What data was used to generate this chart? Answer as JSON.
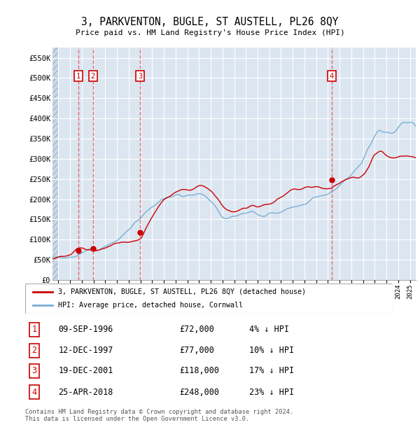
{
  "title": "3, PARKVENTON, BUGLE, ST AUSTELL, PL26 8QY",
  "subtitle": "Price paid vs. HM Land Registry's House Price Index (HPI)",
  "ylim": [
    0,
    575000
  ],
  "yticks": [
    0,
    50000,
    100000,
    150000,
    200000,
    250000,
    300000,
    350000,
    400000,
    450000,
    500000,
    550000
  ],
  "ytick_labels": [
    "£0",
    "£50K",
    "£100K",
    "£150K",
    "£200K",
    "£250K",
    "£300K",
    "£350K",
    "£400K",
    "£450K",
    "£500K",
    "£550K"
  ],
  "hpi_color": "#7bafd4",
  "price_color": "#cc0000",
  "bg_color": "#dce6f1",
  "transaction_dates": [
    1996.69,
    1997.95,
    2001.97,
    2018.32
  ],
  "transaction_prices": [
    72000,
    77000,
    118000,
    248000
  ],
  "transaction_labels": [
    "1",
    "2",
    "3",
    "4"
  ],
  "legend_label_price": "3, PARKVENTON, BUGLE, ST AUSTELL, PL26 8QY (detached house)",
  "legend_label_hpi": "HPI: Average price, detached house, Cornwall",
  "table_data": [
    [
      "1",
      "09-SEP-1996",
      "£72,000",
      "4% ↓ HPI"
    ],
    [
      "2",
      "12-DEC-1997",
      "£77,000",
      "10% ↓ HPI"
    ],
    [
      "3",
      "19-DEC-2001",
      "£118,000",
      "17% ↓ HPI"
    ],
    [
      "4",
      "25-APR-2018",
      "£248,000",
      "23% ↓ HPI"
    ]
  ],
  "footer": "Contains HM Land Registry data © Crown copyright and database right 2024.\nThis data is licensed under the Open Government Licence v3.0.",
  "xmin": 1994.5,
  "xmax": 2025.5,
  "hpi_knots_x": [
    1994.5,
    1995.0,
    1995.5,
    1996.0,
    1996.5,
    1997.0,
    1997.5,
    1998.0,
    1998.5,
    1999.0,
    1999.5,
    2000.0,
    2000.5,
    2001.0,
    2001.5,
    2002.0,
    2002.5,
    2003.0,
    2003.5,
    2004.0,
    2004.5,
    2005.0,
    2005.5,
    2006.0,
    2006.5,
    2007.0,
    2007.5,
    2008.0,
    2008.5,
    2009.0,
    2009.5,
    2010.0,
    2010.5,
    2011.0,
    2011.5,
    2012.0,
    2012.5,
    2013.0,
    2013.5,
    2014.0,
    2014.5,
    2015.0,
    2015.5,
    2016.0,
    2016.5,
    2017.0,
    2017.5,
    2018.0,
    2018.5,
    2019.0,
    2019.5,
    2020.0,
    2020.5,
    2021.0,
    2021.5,
    2022.0,
    2022.5,
    2023.0,
    2023.5,
    2024.0,
    2024.5,
    2025.0
  ],
  "hpi_knots_y": [
    55000,
    57000,
    59000,
    61000,
    64000,
    67000,
    71000,
    76000,
    82000,
    89000,
    98000,
    108000,
    120000,
    133000,
    148000,
    163000,
    178000,
    192000,
    207000,
    220000,
    230000,
    235000,
    240000,
    243000,
    248000,
    252000,
    248000,
    242000,
    228000,
    210000,
    200000,
    198000,
    200000,
    202000,
    205000,
    203000,
    205000,
    210000,
    215000,
    220000,
    228000,
    235000,
    240000,
    248000,
    255000,
    262000,
    268000,
    272000,
    278000,
    285000,
    292000,
    298000,
    310000,
    330000,
    360000,
    395000,
    415000,
    410000,
    405000,
    415000,
    430000,
    435000
  ],
  "price_knots_x": [
    1994.5,
    1995.0,
    1995.5,
    1996.0,
    1996.69,
    1997.95,
    1998.5,
    1999.0,
    1999.5,
    2000.0,
    2000.5,
    2001.0,
    2001.5,
    2001.97,
    2002.5,
    2003.0,
    2003.5,
    2004.0,
    2004.5,
    2005.0,
    2005.5,
    2006.0,
    2006.5,
    2007.0,
    2007.5,
    2008.0,
    2008.5,
    2009.0,
    2009.5,
    2010.0,
    2010.5,
    2011.0,
    2011.5,
    2012.0,
    2012.5,
    2013.0,
    2013.5,
    2014.0,
    2014.5,
    2015.0,
    2015.5,
    2016.0,
    2016.5,
    2017.0,
    2017.5,
    2018.0,
    2018.32,
    2018.5,
    2019.0,
    2019.5,
    2020.0,
    2020.5,
    2021.0,
    2021.5,
    2022.0,
    2022.5,
    2023.0,
    2023.5,
    2024.0,
    2024.5,
    2025.0
  ],
  "price_knots_y": [
    50000,
    51000,
    52000,
    54000,
    72000,
    77000,
    82000,
    88000,
    95000,
    102000,
    110000,
    114000,
    116000,
    118000,
    140000,
    162000,
    185000,
    205000,
    218000,
    225000,
    228000,
    232000,
    238000,
    245000,
    248000,
    245000,
    232000,
    215000,
    200000,
    195000,
    198000,
    200000,
    202000,
    198000,
    200000,
    205000,
    210000,
    215000,
    220000,
    225000,
    230000,
    235000,
    240000,
    245000,
    247000,
    248000,
    248000,
    252000,
    258000,
    265000,
    272000,
    278000,
    290000,
    315000,
    345000,
    350000,
    340000,
    335000,
    335000,
    330000,
    325000
  ]
}
